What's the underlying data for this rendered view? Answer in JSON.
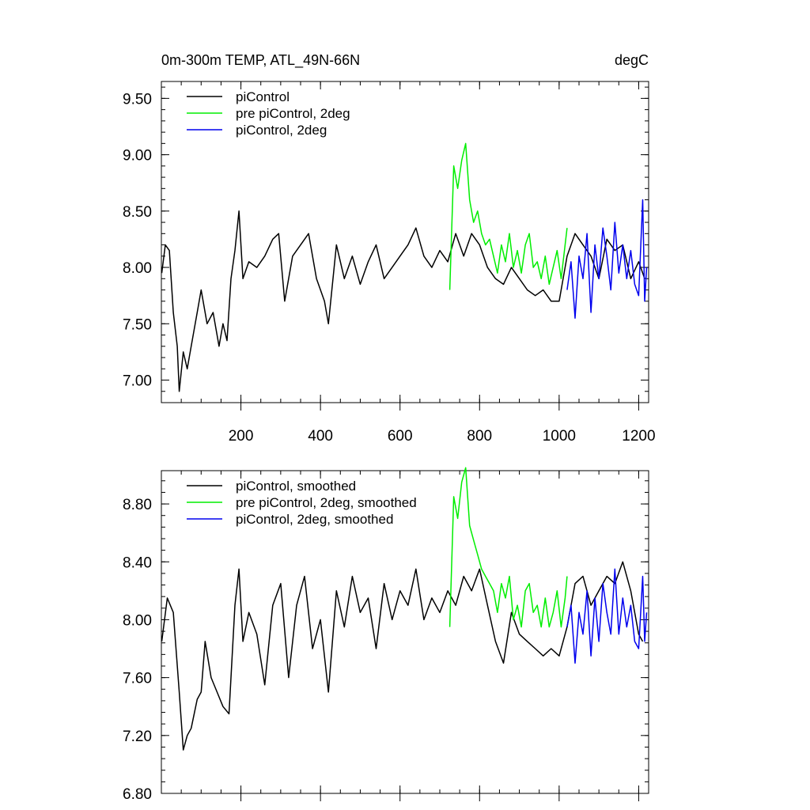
{
  "chart_data": [
    {
      "type": "line",
      "title": "0m-300m TEMP, ATL_49N-66N",
      "units": "degC",
      "xlabel": "",
      "ylabel": "",
      "xlim": [
        0,
        1225
      ],
      "ylim": [
        6.8,
        9.65
      ],
      "xticks": [
        200,
        400,
        600,
        800,
        1000,
        1200
      ],
      "xtick_labels": [
        "200",
        "400",
        "600",
        "800",
        "1000",
        "1200"
      ],
      "yticks": [
        7.0,
        7.5,
        8.0,
        8.5,
        9.0,
        9.5
      ],
      "ytick_labels": [
        "7.00",
        "7.50",
        "8.00",
        "8.50",
        "9.00",
        "9.50"
      ],
      "legend_position": "top-left",
      "series": [
        {
          "name": "piControl",
          "color": "#000000",
          "x": [
            1,
            10,
            20,
            30,
            40,
            45,
            55,
            65,
            75,
            90,
            100,
            115,
            130,
            145,
            155,
            165,
            175,
            185,
            195,
            205,
            220,
            240,
            260,
            280,
            295,
            310,
            330,
            350,
            370,
            390,
            410,
            420,
            440,
            460,
            480,
            500,
            520,
            540,
            560,
            580,
            600,
            620,
            640,
            660,
            680,
            700,
            720,
            740,
            760,
            780,
            800,
            820,
            840,
            860,
            880,
            900,
            920,
            940,
            960,
            980,
            1000,
            1020,
            1040,
            1060,
            1080,
            1100,
            1120,
            1140,
            1160,
            1180,
            1200,
            1215
          ],
          "y": [
            7.95,
            8.2,
            8.15,
            7.6,
            7.3,
            6.9,
            7.25,
            7.1,
            7.3,
            7.6,
            7.8,
            7.5,
            7.6,
            7.3,
            7.5,
            7.35,
            7.9,
            8.15,
            8.5,
            7.9,
            8.05,
            8.0,
            8.1,
            8.25,
            8.3,
            7.7,
            8.1,
            8.2,
            8.3,
            7.9,
            7.7,
            7.5,
            8.2,
            7.9,
            8.1,
            7.85,
            8.05,
            8.2,
            7.9,
            8.0,
            8.1,
            8.2,
            8.35,
            8.1,
            8.0,
            8.15,
            8.05,
            8.3,
            8.1,
            8.3,
            8.2,
            8.0,
            7.9,
            7.85,
            8.0,
            7.9,
            7.8,
            7.75,
            7.8,
            7.7,
            7.7,
            8.1,
            8.3,
            8.2,
            8.1,
            7.9,
            8.25,
            8.15,
            8.2,
            7.9,
            8.05,
            7.9
          ]
        },
        {
          "name": "pre piControl, 2deg",
          "color": "#00ee00",
          "x": [
            725,
            735,
            745,
            755,
            765,
            775,
            785,
            795,
            805,
            815,
            825,
            835,
            845,
            855,
            865,
            875,
            885,
            895,
            905,
            915,
            925,
            935,
            945,
            955,
            965,
            975,
            985,
            995,
            1005,
            1015,
            1020
          ],
          "y": [
            7.8,
            8.9,
            8.7,
            8.95,
            9.1,
            8.6,
            8.4,
            8.5,
            8.3,
            8.2,
            8.25,
            8.1,
            7.95,
            8.2,
            8.05,
            8.3,
            8.0,
            8.15,
            7.95,
            8.2,
            8.3,
            8.0,
            8.05,
            7.9,
            8.1,
            7.85,
            8.0,
            8.15,
            7.9,
            8.2,
            8.35
          ]
        },
        {
          "name": "piControl, 2deg",
          "color": "#0000ee",
          "x": [
            1020,
            1030,
            1040,
            1050,
            1060,
            1070,
            1080,
            1090,
            1100,
            1110,
            1120,
            1130,
            1140,
            1150,
            1160,
            1170,
            1180,
            1190,
            1200,
            1210,
            1215,
            1220
          ],
          "y": [
            7.8,
            8.05,
            7.55,
            8.1,
            7.9,
            8.3,
            7.6,
            8.2,
            7.9,
            8.35,
            8.1,
            7.8,
            8.4,
            7.95,
            8.2,
            7.9,
            8.15,
            7.85,
            7.75,
            8.6,
            7.7,
            8.0
          ]
        }
      ]
    },
    {
      "type": "line",
      "title": "",
      "xlabel": "",
      "ylabel": "",
      "xlim": [
        0,
        1225
      ],
      "ylim": [
        6.8,
        9.03
      ],
      "xticks": [
        200,
        400,
        600,
        800,
        1000,
        1200
      ],
      "yticks": [
        6.8,
        7.2,
        7.6,
        8.0,
        8.4,
        8.8
      ],
      "ytick_labels": [
        "6.80",
        "7.20",
        "7.60",
        "8.00",
        "8.40",
        "8.80"
      ],
      "legend_position": "top-left",
      "series": [
        {
          "name": "piControl, smoothed",
          "color": "#000000",
          "x": [
            1,
            15,
            30,
            45,
            55,
            65,
            75,
            90,
            100,
            110,
            125,
            140,
            155,
            170,
            185,
            195,
            205,
            220,
            240,
            260,
            280,
            300,
            320,
            340,
            360,
            380,
            400,
            420,
            440,
            460,
            480,
            500,
            520,
            540,
            560,
            580,
            600,
            620,
            640,
            660,
            680,
            700,
            720,
            740,
            760,
            780,
            800,
            820,
            840,
            860,
            880,
            900,
            920,
            940,
            960,
            980,
            1000,
            1020,
            1040,
            1060,
            1080,
            1100,
            1120,
            1140,
            1160,
            1180,
            1200,
            1210
          ],
          "y": [
            7.85,
            8.15,
            8.05,
            7.5,
            7.1,
            7.2,
            7.25,
            7.45,
            7.5,
            7.85,
            7.6,
            7.5,
            7.4,
            7.35,
            8.1,
            8.35,
            7.85,
            8.05,
            7.9,
            7.55,
            8.1,
            8.25,
            7.6,
            8.1,
            8.3,
            7.8,
            8.0,
            7.5,
            8.2,
            7.95,
            8.3,
            8.05,
            8.15,
            7.8,
            8.25,
            8.0,
            8.2,
            8.1,
            8.35,
            8.0,
            8.15,
            8.05,
            8.2,
            8.1,
            8.3,
            8.2,
            8.35,
            8.1,
            7.85,
            7.7,
            8.05,
            7.9,
            7.85,
            7.8,
            7.75,
            7.8,
            7.75,
            7.95,
            8.25,
            8.3,
            8.1,
            8.2,
            8.3,
            8.25,
            8.4,
            8.2,
            7.9,
            7.85
          ]
        },
        {
          "name": "pre piControl, 2deg, smoothed",
          "color": "#00ee00",
          "x": [
            725,
            735,
            745,
            755,
            765,
            775,
            785,
            795,
            805,
            815,
            825,
            835,
            845,
            855,
            865,
            875,
            885,
            895,
            905,
            915,
            925,
            935,
            945,
            955,
            965,
            975,
            985,
            995,
            1005,
            1015,
            1020
          ],
          "y": [
            7.95,
            8.85,
            8.7,
            8.95,
            9.05,
            8.65,
            8.55,
            8.45,
            8.35,
            8.3,
            8.25,
            8.2,
            8.05,
            8.25,
            8.15,
            8.3,
            8.0,
            8.1,
            7.95,
            8.2,
            8.25,
            8.05,
            8.1,
            7.95,
            8.15,
            7.95,
            8.05,
            8.2,
            7.95,
            8.15,
            8.3
          ]
        },
        {
          "name": "piControl, 2deg, smoothed",
          "color": "#0000ee",
          "x": [
            1020,
            1030,
            1040,
            1050,
            1060,
            1070,
            1080,
            1090,
            1100,
            1110,
            1120,
            1130,
            1140,
            1150,
            1160,
            1170,
            1180,
            1190,
            1200,
            1210,
            1215,
            1220
          ],
          "y": [
            7.95,
            8.1,
            7.7,
            8.05,
            7.9,
            8.2,
            7.75,
            8.15,
            7.85,
            8.25,
            8.05,
            7.9,
            8.35,
            7.9,
            8.15,
            7.95,
            8.1,
            7.85,
            7.8,
            8.3,
            7.85,
            8.05
          ]
        }
      ]
    }
  ]
}
